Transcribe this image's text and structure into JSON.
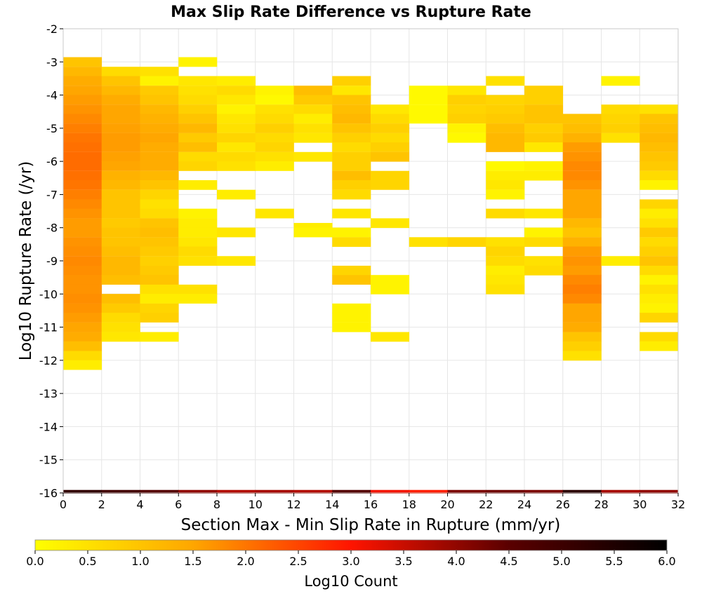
{
  "chart_data": {
    "type": "heatmap",
    "title": "Max Slip Rate Difference vs Rupture Rate",
    "xlabel": "Section Max - Min Slip Rate in Rupture (mm/yr)",
    "ylabel": "Log10 Rupture Rate (/yr)",
    "xlim": [
      0,
      32
    ],
    "ylim": [
      -16,
      -2
    ],
    "x_ticks": [
      "0",
      "2",
      "4",
      "6",
      "8",
      "10",
      "12",
      "14",
      "16",
      "18",
      "20",
      "22",
      "24",
      "26",
      "28",
      "30",
      "32"
    ],
    "y_ticks": [
      "-2",
      "-3",
      "-4",
      "-5",
      "-6",
      "-7",
      "-8",
      "-9",
      "-10",
      "-11",
      "-12",
      "-13",
      "-14",
      "-15",
      "-16"
    ],
    "grid": true,
    "x_bin_width": 2,
    "y_bin_height": 0.285714,
    "colorbar": {
      "label": "Log10 Count",
      "range": [
        0,
        6
      ],
      "ticks": [
        "0.0",
        "0.5",
        "1.0",
        "1.5",
        "2.0",
        "2.5",
        "3.0",
        "3.5",
        "4.0",
        "4.5",
        "5.0",
        "5.5",
        "6.0"
      ],
      "colors": [
        "#ffff00",
        "#ffa600",
        "#ff1400",
        "#5a0000",
        "#000000"
      ],
      "placement": "bottom"
    },
    "cells": [
      [
        0,
        -3.0,
        1.0
      ],
      [
        0,
        -3.29,
        1.2
      ],
      [
        0,
        -3.57,
        1.4
      ],
      [
        0,
        -3.86,
        1.5
      ],
      [
        0,
        -4.14,
        1.6
      ],
      [
        0,
        -4.43,
        1.7
      ],
      [
        0,
        -4.71,
        1.8
      ],
      [
        0,
        -5.0,
        1.9
      ],
      [
        0,
        -5.29,
        2.0
      ],
      [
        0,
        -5.57,
        2.05
      ],
      [
        0,
        -5.86,
        2.1
      ],
      [
        0,
        -6.14,
        2.1
      ],
      [
        0,
        -6.43,
        2.05
      ],
      [
        0,
        -6.71,
        2.0
      ],
      [
        0,
        -7.0,
        1.9
      ],
      [
        0,
        -7.29,
        1.8
      ],
      [
        0,
        -7.57,
        1.7
      ],
      [
        0,
        -7.86,
        1.6
      ],
      [
        0,
        -8.14,
        1.6
      ],
      [
        0,
        -8.43,
        1.7
      ],
      [
        0,
        -8.71,
        1.75
      ],
      [
        0,
        -9.0,
        1.8
      ],
      [
        0,
        -9.29,
        1.75
      ],
      [
        0,
        -9.57,
        1.7
      ],
      [
        0,
        -9.86,
        1.7
      ],
      [
        0,
        -10.14,
        1.75
      ],
      [
        0,
        -10.43,
        1.7
      ],
      [
        0,
        -10.71,
        1.6
      ],
      [
        0,
        -11.0,
        1.5
      ],
      [
        0,
        -11.29,
        1.4
      ],
      [
        0,
        -11.57,
        1.1
      ],
      [
        0,
        -11.86,
        0.6
      ],
      [
        0,
        -12.14,
        0.3
      ],
      [
        2,
        -3.29,
        0.6
      ],
      [
        2,
        -3.57,
        1.0
      ],
      [
        2,
        -3.86,
        1.2
      ],
      [
        2,
        -4.14,
        1.4
      ],
      [
        2,
        -4.43,
        1.5
      ],
      [
        2,
        -4.71,
        1.5
      ],
      [
        2,
        -5.0,
        1.55
      ],
      [
        2,
        -5.29,
        1.6
      ],
      [
        2,
        -5.57,
        1.6
      ],
      [
        2,
        -5.86,
        1.55
      ],
      [
        2,
        -6.14,
        1.5
      ],
      [
        2,
        -6.43,
        1.3
      ],
      [
        2,
        -6.71,
        1.2
      ],
      [
        2,
        -7.0,
        1.0
      ],
      [
        2,
        -7.29,
        1.0
      ],
      [
        2,
        -7.57,
        1.0
      ],
      [
        2,
        -7.86,
        0.9
      ],
      [
        2,
        -8.14,
        1.0
      ],
      [
        2,
        -8.43,
        1.0
      ],
      [
        2,
        -8.71,
        1.1
      ],
      [
        2,
        -9.0,
        1.2
      ],
      [
        2,
        -9.29,
        1.2
      ],
      [
        2,
        -9.57,
        1.1
      ],
      [
        2,
        -10.14,
        1.1
      ],
      [
        2,
        -10.43,
        0.9
      ],
      [
        2,
        -10.71,
        0.6
      ],
      [
        2,
        -11.0,
        0.5
      ],
      [
        2,
        -11.29,
        0.4
      ],
      [
        4,
        -3.29,
        0.5
      ],
      [
        4,
        -3.57,
        0.2
      ],
      [
        4,
        -3.86,
        0.9
      ],
      [
        4,
        -4.14,
        1.0
      ],
      [
        4,
        -4.43,
        1.2
      ],
      [
        4,
        -4.71,
        1.3
      ],
      [
        4,
        -5.0,
        1.4
      ],
      [
        4,
        -5.29,
        1.5
      ],
      [
        4,
        -5.57,
        1.4
      ],
      [
        4,
        -5.86,
        1.4
      ],
      [
        4,
        -6.14,
        1.4
      ],
      [
        4,
        -6.43,
        1.2
      ],
      [
        4,
        -6.71,
        1.0
      ],
      [
        4,
        -7.0,
        0.7
      ],
      [
        4,
        -7.29,
        0.5
      ],
      [
        4,
        -7.57,
        0.6
      ],
      [
        4,
        -7.86,
        1.0
      ],
      [
        4,
        -8.14,
        1.1
      ],
      [
        4,
        -8.43,
        1.0
      ],
      [
        4,
        -8.71,
        0.9
      ],
      [
        4,
        -9.0,
        0.8
      ],
      [
        4,
        -9.29,
        0.9
      ],
      [
        4,
        -9.57,
        1.0
      ],
      [
        4,
        -9.86,
        0.5
      ],
      [
        4,
        -10.14,
        0.3
      ],
      [
        4,
        -10.43,
        0.7
      ],
      [
        4,
        -10.71,
        0.8
      ],
      [
        4,
        -11.29,
        0.3
      ],
      [
        6,
        -3.0,
        0.2
      ],
      [
        6,
        -3.57,
        0.4
      ],
      [
        6,
        -3.86,
        0.5
      ],
      [
        6,
        -4.14,
        0.6
      ],
      [
        6,
        -4.43,
        0.8
      ],
      [
        6,
        -4.71,
        1.0
      ],
      [
        6,
        -5.0,
        1.2
      ],
      [
        6,
        -5.29,
        0.9
      ],
      [
        6,
        -5.57,
        1.1
      ],
      [
        6,
        -5.86,
        0.6
      ],
      [
        6,
        -6.14,
        0.7
      ],
      [
        6,
        -6.71,
        0.3
      ],
      [
        6,
        -7.57,
        0.2
      ],
      [
        6,
        -7.86,
        0.3
      ],
      [
        6,
        -8.14,
        0.3
      ],
      [
        6,
        -8.43,
        0.4
      ],
      [
        6,
        -8.71,
        0.6
      ],
      [
        6,
        -9.0,
        0.5
      ],
      [
        6,
        -9.86,
        0.5
      ],
      [
        6,
        -10.14,
        0.3
      ],
      [
        8,
        -3.57,
        0.3
      ],
      [
        8,
        -3.86,
        0.6
      ],
      [
        8,
        -4.14,
        0.4
      ],
      [
        8,
        -4.43,
        0.2
      ],
      [
        8,
        -4.71,
        0.4
      ],
      [
        8,
        -5.0,
        0.5
      ],
      [
        8,
        -5.29,
        0.7
      ],
      [
        8,
        -5.57,
        0.4
      ],
      [
        8,
        -5.86,
        0.6
      ],
      [
        8,
        -6.14,
        0.5
      ],
      [
        8,
        -7.0,
        0.3
      ],
      [
        8,
        -8.14,
        0.4
      ],
      [
        8,
        -9.0,
        0.4
      ],
      [
        10,
        -3.86,
        0.2
      ],
      [
        10,
        -4.14,
        0.1
      ],
      [
        10,
        -4.43,
        0.5
      ],
      [
        10,
        -4.71,
        0.6
      ],
      [
        10,
        -5.0,
        0.8
      ],
      [
        10,
        -5.29,
        0.6
      ],
      [
        10,
        -5.57,
        0.7
      ],
      [
        10,
        -5.86,
        0.5
      ],
      [
        10,
        -6.14,
        0.3
      ],
      [
        10,
        -7.57,
        0.4
      ],
      [
        12,
        -3.86,
        1.1
      ],
      [
        12,
        -4.14,
        0.9
      ],
      [
        12,
        -4.43,
        0.6
      ],
      [
        12,
        -4.71,
        0.3
      ],
      [
        12,
        -5.0,
        0.5
      ],
      [
        12,
        -5.29,
        0.4
      ],
      [
        12,
        -5.86,
        0.4
      ],
      [
        12,
        -8.0,
        0.3
      ],
      [
        12,
        -8.14,
        0.2
      ],
      [
        14,
        -3.57,
        0.8
      ],
      [
        14,
        -3.86,
        0.4
      ],
      [
        14,
        -4.14,
        1.0
      ],
      [
        14,
        -4.43,
        1.1
      ],
      [
        14,
        -4.71,
        1.2
      ],
      [
        14,
        -5.0,
        1.0
      ],
      [
        14,
        -5.29,
        0.8
      ],
      [
        14,
        -5.57,
        0.6
      ],
      [
        14,
        -5.86,
        0.8
      ],
      [
        14,
        -6.14,
        0.8
      ],
      [
        14,
        -6.43,
        1.1
      ],
      [
        14,
        -6.71,
        0.8
      ],
      [
        14,
        -7.0,
        0.6
      ],
      [
        14,
        -7.57,
        0.4
      ],
      [
        14,
        -8.14,
        0.2
      ],
      [
        14,
        -8.43,
        0.6
      ],
      [
        14,
        -9.29,
        0.7
      ],
      [
        14,
        -9.57,
        1.0
      ],
      [
        14,
        -10.43,
        0.2
      ],
      [
        14,
        -10.71,
        0.2
      ],
      [
        14,
        -11.0,
        0.2
      ],
      [
        16,
        -4.43,
        0.4
      ],
      [
        16,
        -4.71,
        0.6
      ],
      [
        16,
        -5.0,
        0.8
      ],
      [
        16,
        -5.29,
        0.6
      ],
      [
        16,
        -5.57,
        0.8
      ],
      [
        16,
        -5.86,
        1.0
      ],
      [
        16,
        -6.43,
        0.7
      ],
      [
        16,
        -6.71,
        0.7
      ],
      [
        16,
        -7.86,
        0.4
      ],
      [
        16,
        -9.57,
        0.2
      ],
      [
        16,
        -9.86,
        0.2
      ],
      [
        16,
        -11.29,
        0.4
      ],
      [
        18,
        -3.86,
        0.1
      ],
      [
        18,
        -4.14,
        0.1
      ],
      [
        18,
        -4.43,
        0.1
      ],
      [
        18,
        -4.71,
        0.1
      ],
      [
        18,
        -8.43,
        0.5
      ],
      [
        20,
        -3.86,
        0.4
      ],
      [
        20,
        -4.14,
        0.8
      ],
      [
        20,
        -4.43,
        0.7
      ],
      [
        20,
        -4.71,
        0.8
      ],
      [
        20,
        -5.0,
        0.2
      ],
      [
        20,
        -5.29,
        0.1
      ],
      [
        20,
        -8.43,
        0.7
      ],
      [
        22,
        -3.57,
        0.5
      ],
      [
        22,
        -4.14,
        0.7
      ],
      [
        22,
        -4.43,
        0.8
      ],
      [
        22,
        -4.71,
        0.9
      ],
      [
        22,
        -5.0,
        1.1
      ],
      [
        22,
        -5.29,
        1.2
      ],
      [
        22,
        -5.57,
        1.2
      ],
      [
        22,
        -6.14,
        0.1
      ],
      [
        22,
        -6.43,
        0.3
      ],
      [
        22,
        -6.71,
        0.4
      ],
      [
        22,
        -7.0,
        0.2
      ],
      [
        22,
        -7.57,
        0.6
      ],
      [
        22,
        -8.43,
        0.5
      ],
      [
        22,
        -8.71,
        0.7
      ],
      [
        22,
        -9.0,
        0.6
      ],
      [
        22,
        -9.29,
        0.3
      ],
      [
        22,
        -9.57,
        0.4
      ],
      [
        22,
        -9.86,
        0.5
      ],
      [
        24,
        -3.86,
        0.8
      ],
      [
        24,
        -4.14,
        0.8
      ],
      [
        24,
        -4.43,
        1.0
      ],
      [
        24,
        -4.71,
        1.0
      ],
      [
        24,
        -5.0,
        0.8
      ],
      [
        24,
        -5.29,
        0.9
      ],
      [
        24,
        -5.57,
        0.4
      ],
      [
        24,
        -6.14,
        0.2
      ],
      [
        24,
        -6.43,
        0.3
      ],
      [
        24,
        -7.57,
        0.4
      ],
      [
        24,
        -8.14,
        0.2
      ],
      [
        24,
        -8.43,
        0.6
      ],
      [
        24,
        -9.0,
        0.5
      ],
      [
        24,
        -9.29,
        0.6
      ],
      [
        26,
        -4.71,
        1.0
      ],
      [
        26,
        -5.0,
        1.1
      ],
      [
        26,
        -5.29,
        1.3
      ],
      [
        26,
        -5.57,
        1.6
      ],
      [
        26,
        -5.86,
        1.7
      ],
      [
        26,
        -6.14,
        1.8
      ],
      [
        26,
        -6.43,
        1.8
      ],
      [
        26,
        -6.71,
        1.7
      ],
      [
        26,
        -7.0,
        1.5
      ],
      [
        26,
        -7.29,
        1.5
      ],
      [
        26,
        -7.57,
        1.5
      ],
      [
        26,
        -7.86,
        1.2
      ],
      [
        26,
        -8.14,
        1.0
      ],
      [
        26,
        -8.43,
        1.3
      ],
      [
        26,
        -8.71,
        1.6
      ],
      [
        26,
        -9.0,
        1.7
      ],
      [
        26,
        -9.29,
        1.6
      ],
      [
        26,
        -9.57,
        1.8
      ],
      [
        26,
        -9.86,
        1.9
      ],
      [
        26,
        -10.14,
        1.8
      ],
      [
        26,
        -10.43,
        1.5
      ],
      [
        26,
        -10.71,
        1.5
      ],
      [
        26,
        -11.0,
        1.4
      ],
      [
        26,
        -11.29,
        1.0
      ],
      [
        26,
        -11.57,
        0.8
      ],
      [
        26,
        -11.86,
        0.5
      ],
      [
        28,
        -3.57,
        0.2
      ],
      [
        28,
        -4.43,
        0.6
      ],
      [
        28,
        -4.71,
        0.7
      ],
      [
        28,
        -5.0,
        0.8
      ],
      [
        28,
        -5.29,
        0.5
      ],
      [
        28,
        -9.0,
        0.3
      ],
      [
        30,
        -4.43,
        0.5
      ],
      [
        30,
        -4.71,
        1.0
      ],
      [
        30,
        -5.0,
        1.1
      ],
      [
        30,
        -5.29,
        1.2
      ],
      [
        30,
        -5.57,
        1.1
      ],
      [
        30,
        -5.86,
        1.0
      ],
      [
        30,
        -6.14,
        0.9
      ],
      [
        30,
        -6.43,
        0.6
      ],
      [
        30,
        -6.71,
        0.2
      ],
      [
        30,
        -7.29,
        0.7
      ],
      [
        30,
        -7.57,
        0.3
      ],
      [
        30,
        -7.86,
        0.5
      ],
      [
        30,
        -8.14,
        0.9
      ],
      [
        30,
        -8.43,
        0.6
      ],
      [
        30,
        -8.71,
        0.8
      ],
      [
        30,
        -9.0,
        1.0
      ],
      [
        30,
        -9.29,
        0.6
      ],
      [
        30,
        -9.57,
        0.2
      ],
      [
        30,
        -9.86,
        0.5
      ],
      [
        30,
        -10.14,
        0.3
      ],
      [
        30,
        -10.43,
        0.2
      ],
      [
        30,
        -10.71,
        0.7
      ],
      [
        30,
        -11.29,
        0.6
      ],
      [
        30,
        -11.57,
        0.3
      ]
    ],
    "bottom_row": {
      "y": -16,
      "values": [
        5.2,
        4.9,
        4.6,
        4.0,
        3.7,
        3.8,
        3.7,
        4.6,
        3.1,
        2.9,
        4.2,
        4.3,
        4.2,
        5.3,
        3.8,
        4.0
      ]
    }
  }
}
